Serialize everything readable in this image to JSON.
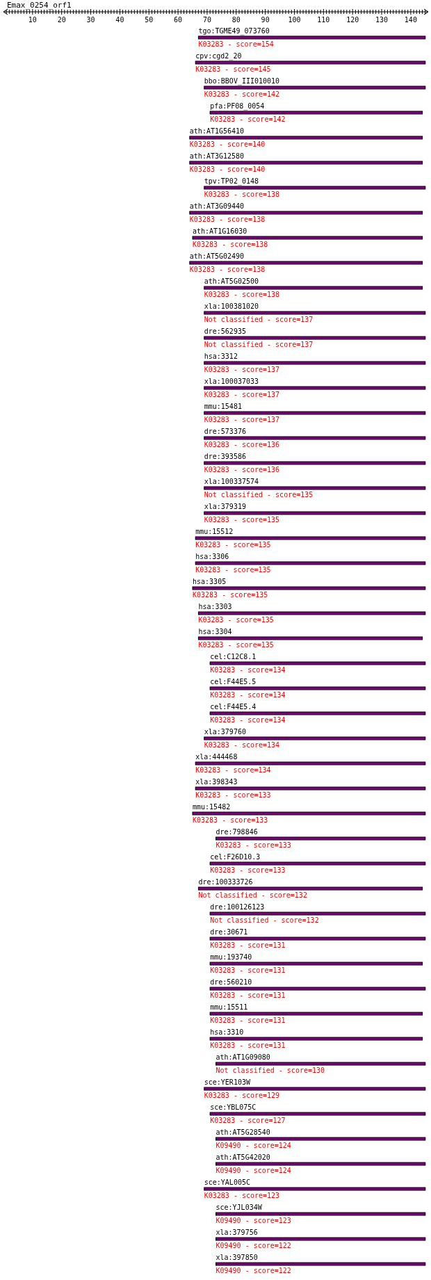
{
  "chart_data": {
    "type": "bar",
    "orientation": "horizontal",
    "title": "Emax_0254_orf1",
    "color": "#800080",
    "categories": [
      "tgo:TGME49_073760",
      "cpv:cgd2_20",
      "bbo:BBOV_III010010",
      "pfa:PF08_0054",
      "ath:AT1G56410",
      "ath:AT3G12580",
      "tpv:TP02_0148",
      "ath:AT3G09440",
      "ath:AT1G16030",
      "ath:AT5G02490",
      "ath:AT5G02500",
      "xla:100381020",
      "dre:562935",
      "hsa:3312",
      "xla:100037033",
      "mmu:15481",
      "dre:573376",
      "dre:393586",
      "xla:100337574",
      "xla:379319",
      "mmu:15512",
      "hsa:3306",
      "hsa:3305",
      "hsa:3303",
      "hsa:3304",
      "cel:C12C8.1",
      "cel:F44E5.5",
      "cel:F44E5.4",
      "xla:379760",
      "xla:444468",
      "xla:398343",
      "mmu:15482",
      "dre:798846",
      "cel:F26D10.3",
      "dre:100333726",
      "dre:100126123",
      "dre:30671",
      "mmu:193740",
      "dre:560210",
      "mmu:15511",
      "hsa:3310",
      "ath:AT1G09080",
      "sce:YER103W",
      "sce:YBL075C",
      "ath:AT5G28540",
      "ath:AT5G42020",
      "sce:YAL005C",
      "sce:YJL034W",
      "xla:379756",
      "xla:397850"
    ],
    "base": [
      67,
      66,
      69,
      71,
      64,
      64,
      69,
      64,
      65,
      64,
      69,
      69,
      69,
      69,
      69,
      69,
      69,
      69,
      69,
      69,
      66,
      66,
      65,
      67,
      67,
      71,
      71,
      71,
      69,
      66,
      66,
      65,
      73,
      71,
      67,
      71,
      71,
      71,
      71,
      71,
      71,
      73,
      69,
      71,
      73,
      73,
      69,
      73,
      73,
      73
    ],
    "values": [
      78,
      79,
      76,
      73,
      80,
      80,
      76,
      80,
      79,
      80,
      75,
      76,
      76,
      76,
      76,
      76,
      76,
      76,
      76,
      76,
      79,
      79,
      80,
      78,
      77,
      74,
      74,
      74,
      76,
      79,
      79,
      80,
      72,
      74,
      77,
      74,
      74,
      73,
      74,
      73,
      73,
      72,
      76,
      74,
      72,
      72,
      76,
      72,
      72,
      72
    ],
    "annotations": [
      "K03283 - score=154",
      "K03283 - score=145",
      "K03283 - score=142",
      "K03283 - score=142",
      "K03283 - score=140",
      "K03283 - score=140",
      "K03283 - score=138",
      "K03283 - score=138",
      "K03283 - score=138",
      "K03283 - score=138",
      "K03283 - score=138",
      "Not classified - score=137",
      "Not classified - score=137",
      "K03283 - score=137",
      "K03283 - score=137",
      "K03283 - score=137",
      "K03283 - score=136",
      "K03283 - score=136",
      "Not classified - score=135",
      "K03283 - score=135",
      "K03283 - score=135",
      "K03283 - score=135",
      "K03283 - score=135",
      "K03283 - score=135",
      "K03283 - score=135",
      "K03283 - score=134",
      "K03283 - score=134",
      "K03283 - score=134",
      "K03283 - score=134",
      "K03283 - score=134",
      "K03283 - score=133",
      "K03283 - score=133",
      "K03283 - score=133",
      "K03283 - score=133",
      "Not classified - score=132",
      "Not classified - score=132",
      "K03283 - score=131",
      "K03283 - score=131",
      "K03283 - score=131",
      "K03283 - score=131",
      "K03283 - score=131",
      "Not classified - score=130",
      "K03283 - score=129",
      "K03283 - score=127",
      "K09490 - score=124",
      "K09490 - score=124",
      "K03283 - score=123",
      "K09490 - score=123",
      "K09490 - score=122",
      "K09490 - score=122"
    ],
    "xlim": [
      0,
      146
    ],
    "xticks": [
      {
        "value": 1,
        "label": null
      },
      {
        "value": 2,
        "label": null
      },
      {
        "value": 3,
        "label": null
      },
      {
        "value": 4,
        "label": null
      },
      {
        "value": 5,
        "label": null
      },
      {
        "value": 6,
        "label": null
      },
      {
        "value": 7,
        "label": null
      },
      {
        "value": 8,
        "label": null
      },
      {
        "value": 9,
        "label": null
      },
      10,
      {
        "value": 11,
        "label": null
      },
      {
        "value": 12,
        "label": null
      },
      {
        "value": 13,
        "label": null
      },
      {
        "value": 14,
        "label": null
      },
      {
        "value": 15,
        "label": null
      },
      {
        "value": 16,
        "label": null
      },
      {
        "value": 17,
        "label": null
      },
      {
        "value": 18,
        "label": null
      },
      {
        "value": 19,
        "label": null
      },
      20,
      {
        "value": 21,
        "label": null
      },
      {
        "value": 22,
        "label": null
      },
      {
        "value": 23,
        "label": null
      },
      {
        "value": 24,
        "label": null
      },
      {
        "value": 25,
        "label": null
      },
      {
        "value": 26,
        "label": null
      },
      {
        "value": 27,
        "label": null
      },
      {
        "value": 28,
        "label": null
      },
      {
        "value": 29,
        "label": null
      },
      30,
      {
        "value": 31,
        "label": null
      },
      {
        "value": 32,
        "label": null
      },
      {
        "value": 33,
        "label": null
      },
      {
        "value": 34,
        "label": null
      },
      {
        "value": 35,
        "label": null
      },
      {
        "value": 36,
        "label": null
      },
      {
        "value": 37,
        "label": null
      },
      {
        "value": 38,
        "label": null
      },
      {
        "value": 39,
        "label": null
      },
      40,
      {
        "value": 41,
        "label": null
      },
      {
        "value": 42,
        "label": null
      },
      {
        "value": 43,
        "label": null
      },
      {
        "value": 44,
        "label": null
      },
      {
        "value": 45,
        "label": null
      },
      {
        "value": 46,
        "label": null
      },
      {
        "value": 47,
        "label": null
      },
      {
        "value": 48,
        "label": null
      },
      {
        "value": 49,
        "label": null
      },
      50,
      {
        "value": 51,
        "label": null
      },
      {
        "value": 52,
        "label": null
      },
      {
        "value": 53,
        "label": null
      },
      {
        "value": 54,
        "label": null
      },
      {
        "value": 55,
        "label": null
      },
      {
        "value": 56,
        "label": null
      },
      {
        "value": 57,
        "label": null
      },
      {
        "value": 58,
        "label": null
      },
      {
        "value": 59,
        "label": null
      },
      60,
      {
        "value": 61,
        "label": null
      },
      {
        "value": 62,
        "label": null
      },
      {
        "value": 63,
        "label": null
      },
      {
        "value": 64,
        "label": null
      },
      {
        "value": 65,
        "label": null
      },
      {
        "value": 66,
        "label": null
      },
      {
        "value": 67,
        "label": null
      },
      {
        "value": 68,
        "label": null
      },
      {
        "value": 69,
        "label": null
      },
      70,
      {
        "value": 71,
        "label": null
      },
      {
        "value": 72,
        "label": null
      },
      {
        "value": 73,
        "label": null
      },
      {
        "value": 74,
        "label": null
      },
      {
        "value": 75,
        "label": null
      },
      {
        "value": 76,
        "label": null
      },
      {
        "value": 77,
        "label": null
      },
      {
        "value": 78,
        "label": null
      },
      {
        "value": 79,
        "label": null
      },
      80,
      {
        "value": 81,
        "label": null
      },
      {
        "value": 82,
        "label": null
      },
      {
        "value": 83,
        "label": null
      },
      {
        "value": 84,
        "label": null
      },
      {
        "value": 85,
        "label": null
      },
      {
        "value": 86,
        "label": null
      },
      {
        "value": 87,
        "label": null
      },
      {
        "value": 88,
        "label": null
      },
      {
        "value": 89,
        "label": null
      },
      90,
      {
        "value": 91,
        "label": null
      },
      {
        "value": 92,
        "label": null
      },
      {
        "value": 93,
        "label": null
      },
      {
        "value": 94,
        "label": null
      },
      {
        "value": 95,
        "label": null
      },
      {
        "value": 96,
        "label": null
      },
      {
        "value": 97,
        "label": null
      },
      {
        "value": 98,
        "label": null
      },
      {
        "value": 99,
        "label": null
      },
      100,
      {
        "value": 101,
        "label": null
      },
      {
        "value": 102,
        "label": null
      },
      {
        "value": 103,
        "label": null
      },
      {
        "value": 104,
        "label": null
      },
      {
        "value": 105,
        "label": null
      },
      {
        "value": 106,
        "label": null
      },
      {
        "value": 107,
        "label": null
      },
      {
        "value": 108,
        "label": null
      },
      {
        "value": 109,
        "label": null
      },
      110,
      {
        "value": 111,
        "label": null
      },
      {
        "value": 112,
        "label": null
      },
      {
        "value": 113,
        "label": null
      },
      {
        "value": 114,
        "label": null
      },
      {
        "value": 115,
        "label": null
      },
      {
        "value": 116,
        "label": null
      },
      {
        "value": 117,
        "label": null
      },
      {
        "value": 118,
        "label": null
      },
      {
        "value": 119,
        "label": null
      },
      120,
      {
        "value": 121,
        "label": null
      },
      {
        "value": 122,
        "label": null
      },
      {
        "value": 123,
        "label": null
      },
      {
        "value": 124,
        "label": null
      },
      {
        "value": 125,
        "label": null
      },
      {
        "value": 126,
        "label": null
      },
      {
        "value": 127,
        "label": null
      },
      {
        "value": 128,
        "label": null
      },
      {
        "value": 129,
        "label": null
      },
      130,
      {
        "value": 131,
        "label": null
      },
      {
        "value": 132,
        "label": null
      },
      {
        "value": 133,
        "label": null
      },
      {
        "value": 134,
        "label": null
      },
      {
        "value": 135,
        "label": null
      },
      {
        "value": 136,
        "label": null
      },
      {
        "value": 137,
        "label": null
      },
      {
        "value": 138,
        "label": null
      },
      {
        "value": 139,
        "label": null
      },
      140,
      {
        "value": 141,
        "label": null
      },
      {
        "value": 142,
        "label": null
      },
      {
        "value": 143,
        "label": null
      },
      {
        "value": 144,
        "label": null
      },
      {
        "value": 145,
        "label": null
      }
    ]
  }
}
